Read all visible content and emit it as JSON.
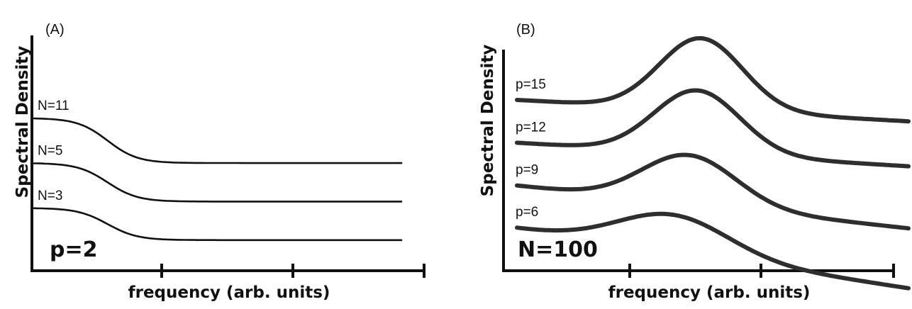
{
  "chart_data": [
    {
      "type": "line",
      "panel_label": "(A)",
      "xlabel": "frequency (arb. units)",
      "ylabel": "Spectral Density",
      "annotation": "p=2",
      "x_ticks": 3,
      "grid": false,
      "line_color": "#111111",
      "series": [
        {
          "name": "N=11",
          "start": 0.68,
          "end": 0.47,
          "knee": 0.2,
          "width": 0.09
        },
        {
          "name": "N=5",
          "start": 0.47,
          "end": 0.29,
          "knee": 0.2,
          "width": 0.09
        },
        {
          "name": "N=3",
          "start": 0.26,
          "end": 0.11,
          "knee": 0.2,
          "width": 0.09
        }
      ]
    },
    {
      "type": "line",
      "panel_label": "(B)",
      "xlabel": "frequency (arb. units)",
      "ylabel": "Spectral Density",
      "annotation": "N=100",
      "x_ticks": 3,
      "grid": false,
      "line_color": "#2e2e2e",
      "series": [
        {
          "name": "p=15",
          "base": 0.765,
          "slope": -0.1,
          "peak": 0.335,
          "center": 0.47,
          "width": 0.15
        },
        {
          "name": "p=12",
          "base": 0.565,
          "slope": -0.11,
          "peak": 0.295,
          "center": 0.46,
          "width": 0.155
        },
        {
          "name": "p=9",
          "base": 0.365,
          "slope": -0.2,
          "peak": 0.23,
          "center": 0.44,
          "width": 0.17
        },
        {
          "name": "p=6",
          "base": 0.165,
          "slope": -0.28,
          "peak": 0.175,
          "center": 0.4,
          "width": 0.2
        }
      ]
    }
  ]
}
